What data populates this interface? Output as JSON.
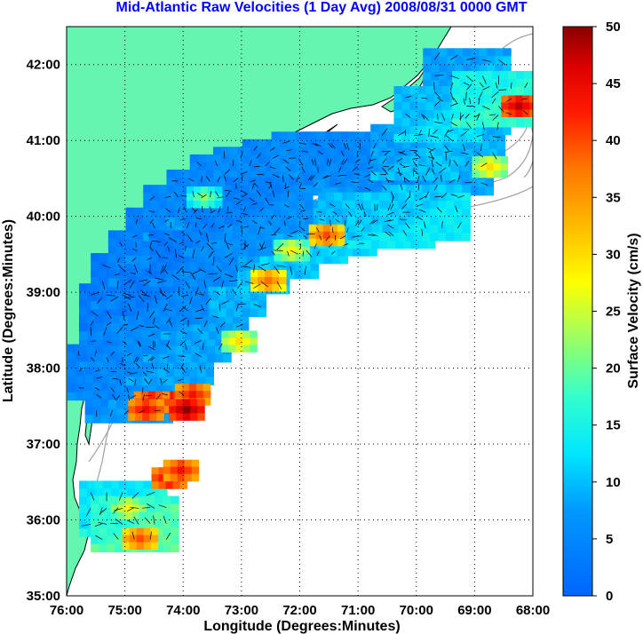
{
  "chart_data": {
    "type": "heatmap",
    "title": "Mid-Atlantic Raw Velocities (1 Day Avg) 2008/08/31 0000 GMT",
    "xlabel": "Longitude (Degrees:Minutes)",
    "ylabel": "Latitude (Degrees:Minutes)",
    "colorbar_label": "Surface Velocity (cm/s)",
    "xlim": [
      -76,
      -68
    ],
    "ylim": [
      35,
      42.5
    ],
    "clim": [
      0,
      50
    ],
    "grid": true,
    "x_ticks": [
      {
        "value": -76,
        "label": "76:00"
      },
      {
        "value": -75,
        "label": "75:00"
      },
      {
        "value": -74,
        "label": "74:00"
      },
      {
        "value": -73,
        "label": "73:00"
      },
      {
        "value": -72,
        "label": "72:00"
      },
      {
        "value": -71,
        "label": "71:00"
      },
      {
        "value": -70,
        "label": "70:00"
      },
      {
        "value": -69,
        "label": "69:00"
      },
      {
        "value": -68,
        "label": "68:00"
      }
    ],
    "y_ticks": [
      {
        "value": 35,
        "label": "35:00"
      },
      {
        "value": 36,
        "label": "36:00"
      },
      {
        "value": 37,
        "label": "37:00"
      },
      {
        "value": 38,
        "label": "38:00"
      },
      {
        "value": 39,
        "label": "39:00"
      },
      {
        "value": 40,
        "label": "40:00"
      },
      {
        "value": 41,
        "label": "41:00"
      },
      {
        "value": 42,
        "label": "42:00"
      }
    ],
    "colorbar_ticks": [
      0,
      5,
      10,
      15,
      20,
      25,
      30,
      35,
      40,
      45,
      50
    ],
    "colors": {
      "land": "#66f5b0",
      "ocean": "#ffffff",
      "coast": "#000000",
      "bathymetry": "#a0a0a0",
      "title": "#0000ff",
      "grid": "#000000"
    },
    "coverage_cells": [
      [
        -75.3,
        38.0,
        5
      ],
      [
        -75.1,
        38.4,
        5
      ],
      [
        -75.1,
        38.8,
        4
      ],
      [
        -74.9,
        39.2,
        4
      ],
      [
        -74.6,
        39.5,
        5
      ],
      [
        -74.3,
        39.8,
        5
      ],
      [
        -74.0,
        40.1,
        6
      ],
      [
        -73.6,
        40.3,
        6
      ],
      [
        -73.2,
        40.5,
        6
      ],
      [
        -72.8,
        40.6,
        7
      ],
      [
        -72.3,
        40.7,
        6
      ],
      [
        -71.8,
        40.8,
        7
      ],
      [
        -71.3,
        40.8,
        6
      ],
      [
        -70.8,
        40.7,
        6
      ],
      [
        -70.3,
        40.6,
        6
      ],
      [
        -69.9,
        40.5,
        7
      ],
      [
        -69.5,
        40.7,
        7
      ],
      [
        -69.3,
        41.1,
        8
      ],
      [
        -69.2,
        41.5,
        8
      ],
      [
        -69.2,
        41.9,
        9
      ],
      [
        -75.0,
        37.7,
        6
      ],
      [
        -74.6,
        37.9,
        6
      ],
      [
        -74.3,
        38.2,
        7
      ],
      [
        -74.0,
        38.5,
        7
      ],
      [
        -73.7,
        38.8,
        7
      ],
      [
        -73.4,
        39.1,
        8
      ],
      [
        -73.0,
        39.4,
        9
      ],
      [
        -72.5,
        39.6,
        9
      ],
      [
        -72.0,
        39.8,
        10
      ],
      [
        -71.5,
        39.9,
        10
      ],
      [
        -71.0,
        40.0,
        11
      ],
      [
        -70.5,
        40.0,
        12
      ],
      [
        -69.9,
        40.1,
        12
      ],
      [
        -74.4,
        39.0,
        4
      ],
      [
        -73.9,
        39.5,
        4
      ],
      [
        -73.3,
        39.9,
        5
      ],
      [
        -72.6,
        40.2,
        5
      ],
      [
        -70.1,
        40.9,
        9
      ],
      [
        -69.7,
        41.4,
        11
      ],
      [
        -68.7,
        41.6,
        16
      ],
      [
        -75.1,
        36.2,
        14
      ],
      [
        -74.9,
        36.0,
        18
      ]
    ],
    "hotspots": [
      [
        -74.3,
        37.6,
        48
      ],
      [
        -74.6,
        37.6,
        46
      ],
      [
        -73.9,
        37.7,
        44
      ],
      [
        -74.7,
        37.5,
        45
      ],
      [
        -74.0,
        37.5,
        50
      ],
      [
        -73.1,
        38.4,
        30
      ],
      [
        -72.6,
        39.2,
        38
      ],
      [
        -71.6,
        39.8,
        40
      ],
      [
        -72.2,
        39.6,
        28
      ],
      [
        -68.8,
        40.7,
        30
      ],
      [
        -68.3,
        41.5,
        48
      ],
      [
        -74.3,
        36.6,
        46
      ],
      [
        -74.1,
        36.7,
        44
      ],
      [
        -74.8,
        35.8,
        40
      ],
      [
        -75.0,
        36.2,
        28
      ],
      [
        -73.7,
        40.3,
        22
      ]
    ],
    "legend": ""
  }
}
